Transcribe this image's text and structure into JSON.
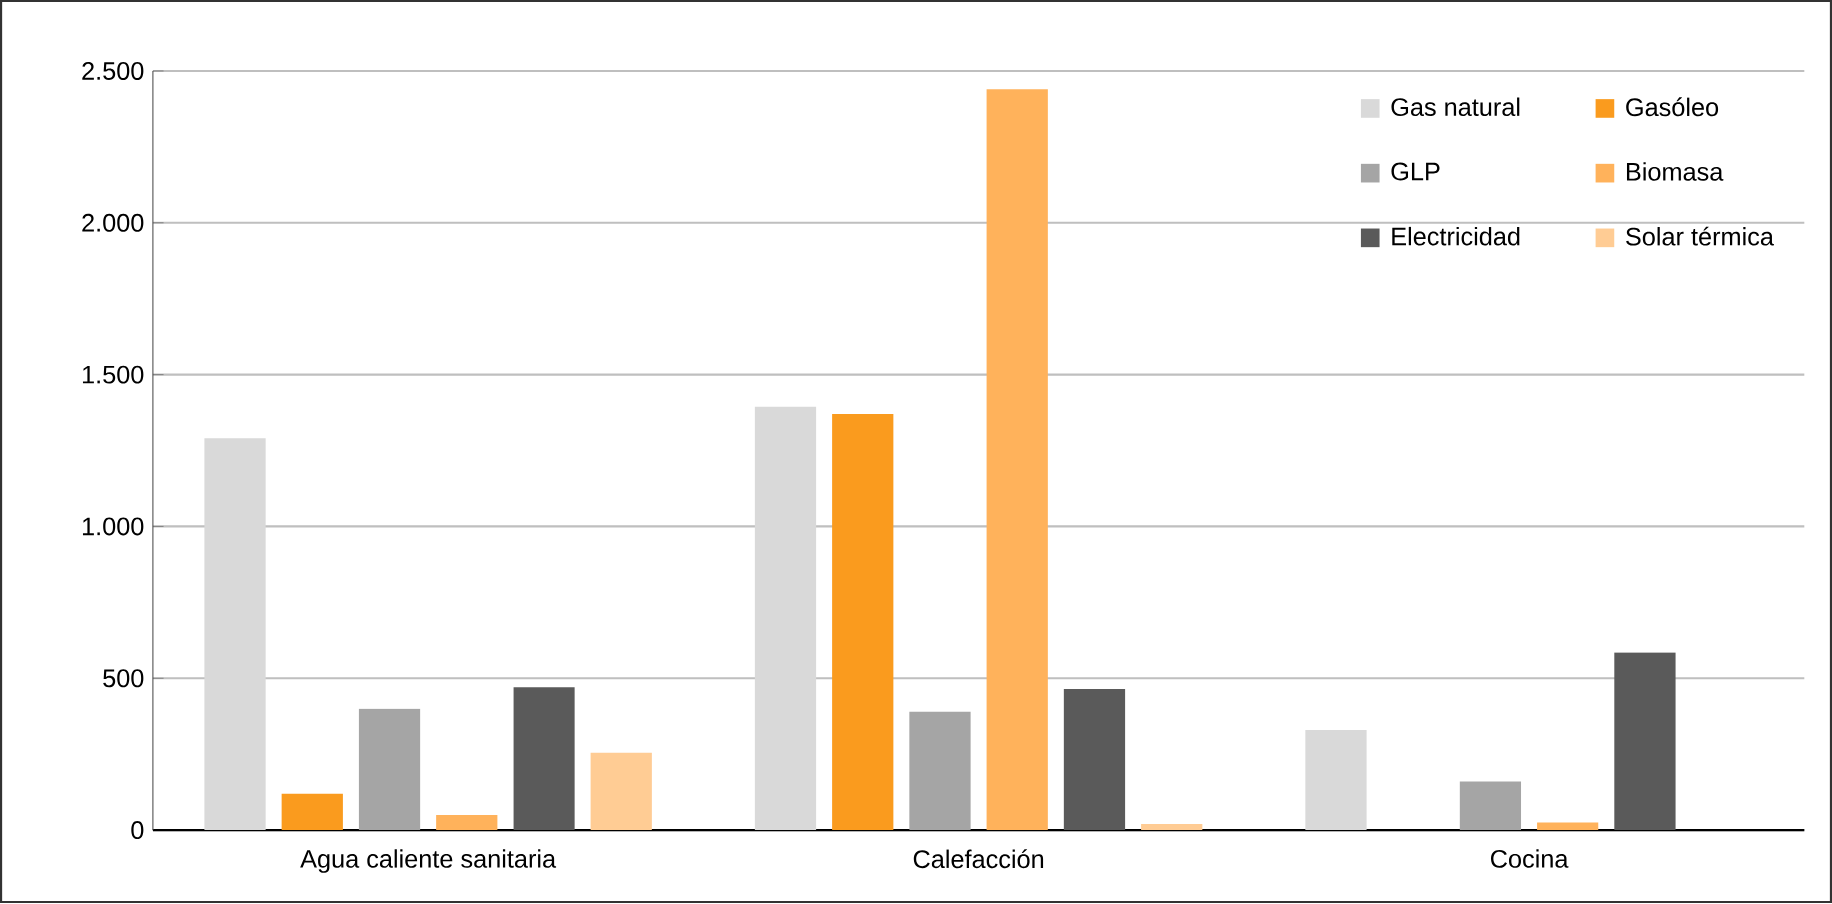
{
  "chart_data": {
    "type": "bar",
    "categories": [
      "Agua caliente sanitaria",
      "Calefacción",
      "Cocina"
    ],
    "series": [
      {
        "name": "Gas natural",
        "color": "#d9d9d9",
        "values": [
          1290,
          1395,
          330
        ]
      },
      {
        "name": "Gasóleo",
        "color": "#fa9b1e",
        "values": [
          120,
          1370,
          0
        ]
      },
      {
        "name": "GLP",
        "color": "#a5a5a5",
        "values": [
          400,
          390,
          160
        ]
      },
      {
        "name": "Biomasa",
        "color": "#ffb25b",
        "values": [
          50,
          2440,
          25
        ]
      },
      {
        "name": "Electricidad",
        "color": "#5a5a5a",
        "values": [
          470,
          465,
          585
        ]
      },
      {
        "name": "Solar térmica",
        "color": "#ffcc94",
        "values": [
          255,
          20,
          0
        ]
      }
    ],
    "ylim": [
      0,
      2500
    ],
    "yticks": [
      0,
      500,
      {
        "value": 1000,
        "label": "1.000"
      },
      {
        "value": 1500,
        "label": "1.500"
      },
      {
        "value": 2000,
        "label": "2.000"
      },
      {
        "value": 2500,
        "label": "2.500"
      }
    ],
    "grid": "y",
    "legend": "top right"
  }
}
